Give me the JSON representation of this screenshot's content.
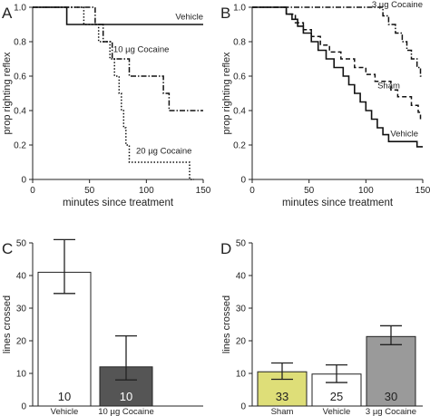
{
  "panel_labels": [
    "A",
    "B",
    "C",
    "D"
  ],
  "chart_data": [
    {
      "panel": "A",
      "type": "line",
      "step": true,
      "xlabel": "minutes since treatment",
      "ylabel": "prop righting reflex",
      "xlim": [
        0,
        150
      ],
      "ylim": [
        0,
        1.0
      ],
      "xticks": [
        0,
        50,
        100,
        150
      ],
      "yticks": [
        0,
        0.2,
        0.4,
        0.6,
        0.8,
        1.0
      ],
      "series": [
        {
          "name": "Vehicle",
          "style": "solid",
          "points": [
            [
              0,
              1.0
            ],
            [
              30,
              1.0
            ],
            [
              30,
              0.9
            ],
            [
              150,
              0.9
            ]
          ]
        },
        {
          "name": "10 µg Cocaine",
          "style": "dashdot",
          "points": [
            [
              0,
              1.0
            ],
            [
              55,
              1.0
            ],
            [
              55,
              0.9
            ],
            [
              62,
              0.9
            ],
            [
              62,
              0.8
            ],
            [
              70,
              0.8
            ],
            [
              70,
              0.7
            ],
            [
              85,
              0.7
            ],
            [
              85,
              0.6
            ],
            [
              115,
              0.6
            ],
            [
              115,
              0.5
            ],
            [
              120,
              0.5
            ],
            [
              120,
              0.4
            ],
            [
              150,
              0.4
            ]
          ]
        },
        {
          "name": "20 µg Cocaine",
          "style": "dotted",
          "points": [
            [
              0,
              1.0
            ],
            [
              45,
              1.0
            ],
            [
              45,
              0.9
            ],
            [
              58,
              0.9
            ],
            [
              58,
              0.8
            ],
            [
              68,
              0.8
            ],
            [
              68,
              0.7
            ],
            [
              72,
              0.7
            ],
            [
              72,
              0.6
            ],
            [
              76,
              0.6
            ],
            [
              76,
              0.5
            ],
            [
              78,
              0.5
            ],
            [
              78,
              0.4
            ],
            [
              80,
              0.4
            ],
            [
              80,
              0.3
            ],
            [
              82,
              0.3
            ],
            [
              82,
              0.2
            ],
            [
              85,
              0.2
            ],
            [
              85,
              0.1
            ],
            [
              138,
              0.1
            ],
            [
              138,
              0.0
            ],
            [
              142,
              0.0
            ]
          ]
        }
      ]
    },
    {
      "panel": "B",
      "type": "line",
      "step": true,
      "xlabel": "minutes since treatment",
      "ylabel": "prop righting reflex",
      "xlim": [
        0,
        150
      ],
      "ylim": [
        0,
        1.0
      ],
      "xticks": [
        0,
        50,
        100,
        150
      ],
      "yticks": [
        0,
        0.2,
        0.4,
        0.6,
        0.8,
        1.0
      ],
      "series": [
        {
          "name": "3 µg Cocaine",
          "style": "dashdot",
          "points": [
            [
              0,
              1.0
            ],
            [
              115,
              1.0
            ],
            [
              115,
              0.95
            ],
            [
              120,
              0.95
            ],
            [
              120,
              0.9
            ],
            [
              126,
              0.9
            ],
            [
              126,
              0.85
            ],
            [
              132,
              0.85
            ],
            [
              132,
              0.8
            ],
            [
              136,
              0.8
            ],
            [
              136,
              0.75
            ],
            [
              140,
              0.75
            ],
            [
              140,
              0.7
            ],
            [
              145,
              0.7
            ],
            [
              145,
              0.65
            ],
            [
              148,
              0.65
            ],
            [
              148,
              0.6
            ],
            [
              150,
              0.6
            ]
          ]
        },
        {
          "name": "Sham",
          "style": "dashed",
          "points": [
            [
              0,
              1.0
            ],
            [
              30,
              1.0
            ],
            [
              30,
              0.96
            ],
            [
              38,
              0.96
            ],
            [
              38,
              0.91
            ],
            [
              45,
              0.91
            ],
            [
              45,
              0.87
            ],
            [
              52,
              0.87
            ],
            [
              52,
              0.83
            ],
            [
              60,
              0.83
            ],
            [
              60,
              0.78
            ],
            [
              68,
              0.78
            ],
            [
              68,
              0.74
            ],
            [
              78,
              0.74
            ],
            [
              78,
              0.7
            ],
            [
              90,
              0.7
            ],
            [
              90,
              0.65
            ],
            [
              100,
              0.65
            ],
            [
              100,
              0.61
            ],
            [
              108,
              0.61
            ],
            [
              108,
              0.57
            ],
            [
              122,
              0.57
            ],
            [
              122,
              0.52
            ],
            [
              128,
              0.52
            ],
            [
              128,
              0.48
            ],
            [
              140,
              0.48
            ],
            [
              140,
              0.43
            ],
            [
              146,
              0.43
            ],
            [
              146,
              0.39
            ],
            [
              148,
              0.39
            ],
            [
              148,
              0.35
            ],
            [
              150,
              0.35
            ]
          ]
        },
        {
          "name": "Vehicle",
          "style": "solid",
          "points": [
            [
              0,
              1.0
            ],
            [
              30,
              1.0
            ],
            [
              30,
              0.96
            ],
            [
              35,
              0.96
            ],
            [
              35,
              0.93
            ],
            [
              40,
              0.93
            ],
            [
              40,
              0.89
            ],
            [
              45,
              0.89
            ],
            [
              45,
              0.85
            ],
            [
              52,
              0.85
            ],
            [
              52,
              0.8
            ],
            [
              58,
              0.8
            ],
            [
              58,
              0.75
            ],
            [
              65,
              0.75
            ],
            [
              65,
              0.7
            ],
            [
              72,
              0.7
            ],
            [
              72,
              0.65
            ],
            [
              80,
              0.65
            ],
            [
              80,
              0.6
            ],
            [
              85,
              0.6
            ],
            [
              85,
              0.55
            ],
            [
              90,
              0.55
            ],
            [
              90,
              0.5
            ],
            [
              95,
              0.5
            ],
            [
              95,
              0.45
            ],
            [
              100,
              0.45
            ],
            [
              100,
              0.4
            ],
            [
              105,
              0.4
            ],
            [
              105,
              0.35
            ],
            [
              110,
              0.35
            ],
            [
              110,
              0.3
            ],
            [
              115,
              0.3
            ],
            [
              115,
              0.26
            ],
            [
              120,
              0.26
            ],
            [
              120,
              0.22
            ],
            [
              145,
              0.22
            ],
            [
              145,
              0.19
            ],
            [
              150,
              0.19
            ]
          ]
        }
      ]
    },
    {
      "panel": "C",
      "type": "bar",
      "ylabel": "lines crossed",
      "ylim": [
        0,
        50
      ],
      "yticks": [
        0,
        10,
        20,
        30,
        40,
        50
      ],
      "categories": [
        "Vehicle",
        "10 µg Cocaine"
      ],
      "values": [
        41,
        12
      ],
      "errors": [
        [
          34.5,
          51
        ],
        [
          8,
          21.5
        ]
      ],
      "n": [
        "10",
        "10"
      ],
      "colors": [
        "#ffffff",
        "#555555"
      ],
      "n_text_colors": [
        "#222222",
        "#ffffff"
      ]
    },
    {
      "panel": "D",
      "type": "bar",
      "ylabel": "lines crossed",
      "ylim": [
        0,
        50
      ],
      "yticks": [
        0,
        10,
        20,
        30,
        40,
        50
      ],
      "categories": [
        "Sham",
        "Vehicle",
        "3 µg Cocaine"
      ],
      "values": [
        10.5,
        9.8,
        21.3
      ],
      "errors": [
        [
          8.2,
          13.2
        ],
        [
          7.2,
          12.6
        ],
        [
          18.8,
          24.6
        ]
      ],
      "n": [
        "33",
        "25",
        "30"
      ],
      "colors": [
        "#dede78",
        "#ffffff",
        "#9a9a9a"
      ],
      "n_text_colors": [
        "#222222",
        "#222222",
        "#222222"
      ]
    }
  ]
}
